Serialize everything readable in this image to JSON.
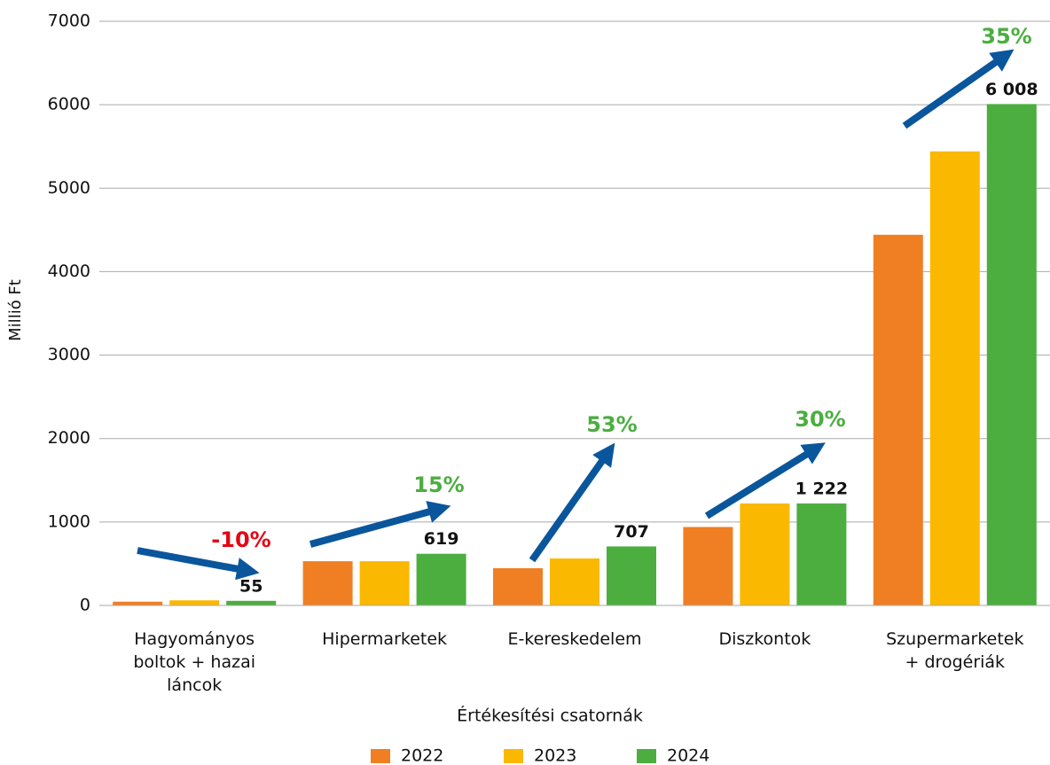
{
  "chart_data": {
    "type": "bar",
    "categories": [
      "Hagyományos boltok + hazai láncok",
      "Hipermarketek",
      "E-kereskedelem",
      "Diszkontok",
      "Szupermarketek + drogériák"
    ],
    "series": [
      {
        "name": "2022",
        "color": "#f07f23",
        "values": [
          45,
          530,
          446,
          940,
          4442
        ]
      },
      {
        "name": "2023",
        "color": "#fbb800",
        "values": [
          61,
          530,
          563,
          1222,
          5441
        ]
      },
      {
        "name": "2024",
        "color": "#4bae3f",
        "values": [
          55,
          619,
          707,
          1222,
          6008
        ],
        "value_labels": [
          "55",
          "619",
          "707",
          "1 222",
          "6 008"
        ]
      }
    ],
    "xlabel": "Értékesítési csatornák",
    "ylabel": "Millió Ft",
    "ylim": [
      0,
      7000
    ],
    "yticks": [
      0,
      1000,
      2000,
      3000,
      4000,
      5000,
      6000,
      7000
    ],
    "grid": true,
    "legend": "bottom",
    "annotations": [
      {
        "text": "-10%",
        "color": "#e30613"
      },
      {
        "text": "15%",
        "color": "#4bae3f"
      },
      {
        "text": "53%",
        "color": "#4bae3f"
      },
      {
        "text": "30%",
        "color": "#4bae3f"
      },
      {
        "text": "35%",
        "color": "#4bae3f"
      }
    ]
  }
}
